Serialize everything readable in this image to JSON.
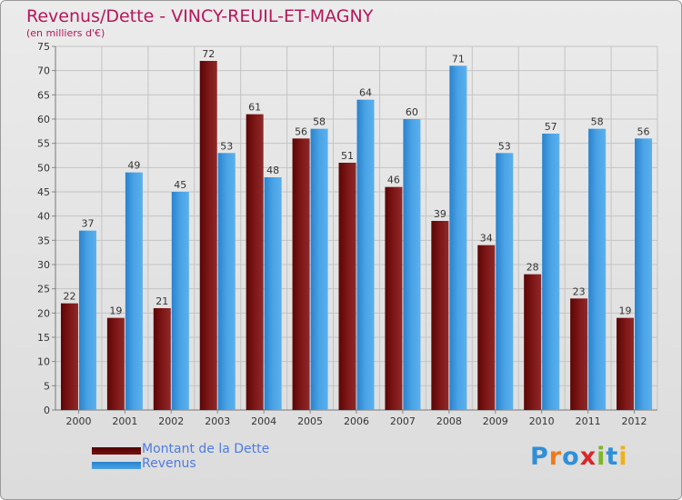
{
  "title": "Revenus/Dette - VINCY-REUIL-ET-MAGNY",
  "subtitle": "(en milliers d'€)",
  "colors": {
    "dette": "#7a1010",
    "revenus": "#3a95dc",
    "title": "#b5175a",
    "legend_text": "#4f7ce0"
  },
  "legend": [
    {
      "label": "Montant de la Dette"
    },
    {
      "label": "Revenus"
    }
  ],
  "logo": {
    "text": "Proxiti"
  },
  "chart_data": {
    "type": "bar",
    "title": "Revenus/Dette - VINCY-REUIL-ET-MAGNY",
    "ylabel": "(en milliers d'€)",
    "xlabel": "",
    "categories": [
      "2000",
      "2001",
      "2002",
      "2003",
      "2004",
      "2005",
      "2006",
      "2007",
      "2008",
      "2009",
      "2010",
      "2011",
      "2012"
    ],
    "series": [
      {
        "name": "Montant de la Dette",
        "values": [
          22,
          19,
          21,
          72,
          61,
          56,
          51,
          46,
          39,
          34,
          28,
          23,
          19
        ]
      },
      {
        "name": "Revenus",
        "values": [
          37,
          49,
          45,
          53,
          48,
          58,
          64,
          60,
          71,
          53,
          57,
          58,
          56
        ]
      }
    ],
    "ylim": [
      0,
      75
    ],
    "ytick_step": 5,
    "grid": true,
    "legend_position": "bottom-left"
  }
}
